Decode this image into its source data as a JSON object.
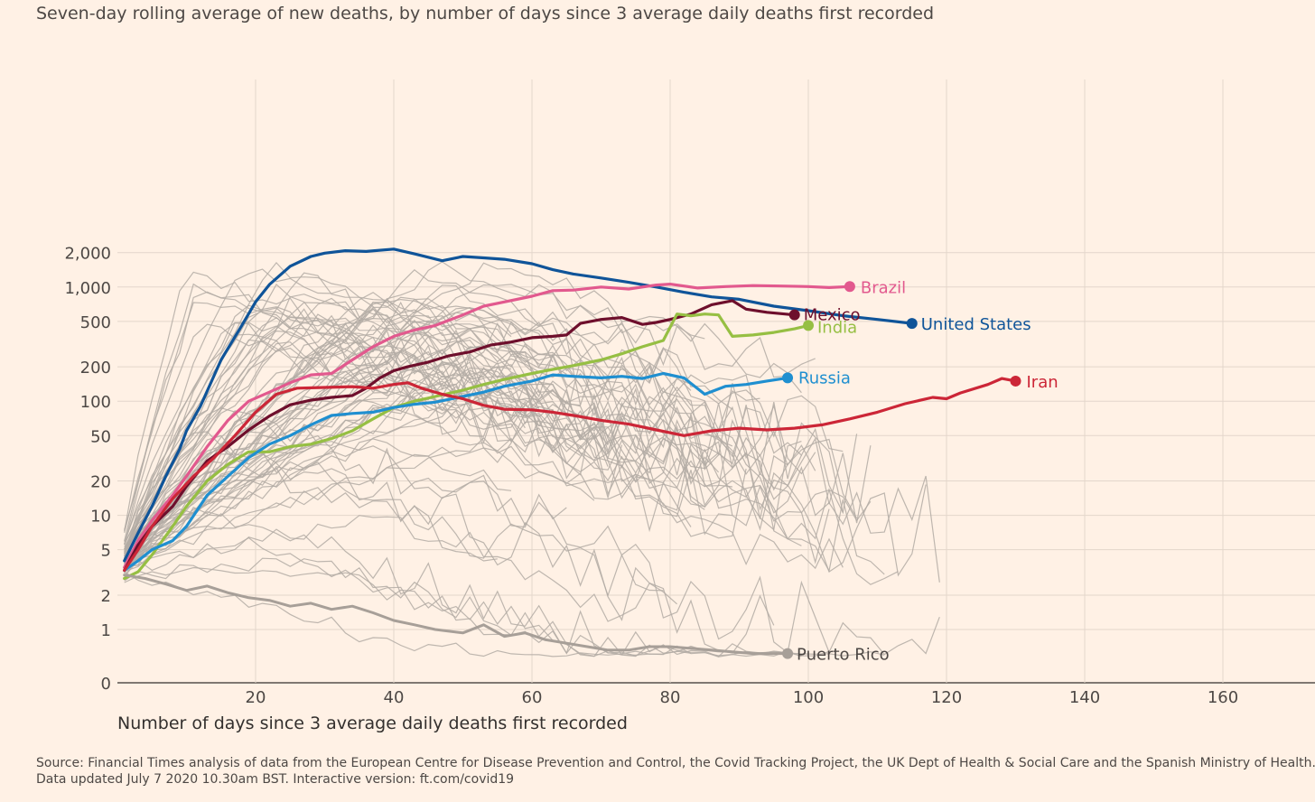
{
  "title": "Seven-day rolling average of new deaths, by number of days since 3 average daily deaths first recorded",
  "xlabel": "Number of days since 3 average daily deaths first recorded",
  "source_line1": "Source: Financial Times analysis of data from the European Centre for Disease Prevention and Control, the Covid Tracking Project, the UK Dept of Health & Social Care and the Spanish Ministry of Health.",
  "source_line2": "Data updated July 7 2020 10.30am BST. Interactive version: ft.com/covid19",
  "chart_data": {
    "type": "line",
    "xlabel": "Number of days since 3 average daily deaths first recorded",
    "ylabel": "",
    "xlim": [
      0,
      175
    ],
    "ylim": [
      0,
      3000
    ],
    "yscale": "log (0 at bottom)",
    "xticks": [
      20,
      40,
      60,
      80,
      100,
      120,
      140,
      160
    ],
    "xtick_labels": [
      "20",
      "40",
      "60",
      "80",
      "100",
      "120",
      "140",
      "160"
    ],
    "yticks": [
      0,
      1,
      2,
      5,
      10,
      20,
      50,
      100,
      200,
      500,
      1000,
      2000
    ],
    "ytick_labels": [
      "0",
      "1",
      "2",
      "5",
      "10",
      "20",
      "50",
      "100",
      "200",
      "500",
      "1,000",
      "2,000"
    ],
    "grid": true,
    "legend": "none (direct labels at line ends)",
    "colors": {
      "background": "#fff1e5",
      "grid": "#e3d6cb",
      "other": "#b3aba4",
      "United States": "#0f5499",
      "Brazil": "#e2598e",
      "Mexico": "#6e0f2c",
      "India": "#96bf43",
      "Russia": "#1f8fd0",
      "Iran": "#cc2637",
      "Puerto Rico": "#a79f98"
    },
    "series": [
      {
        "name": "United States",
        "highlight": true,
        "label_side": "right",
        "x": [
          1,
          3,
          5,
          7,
          9,
          10,
          12,
          15,
          18,
          20,
          22,
          25,
          28,
          30,
          33,
          36,
          40,
          43,
          47,
          50,
          53,
          56,
          60,
          63,
          66,
          70,
          74,
          78,
          82,
          86,
          90,
          95,
          100,
          105,
          110,
          115
        ],
        "y": [
          4,
          7,
          12,
          22,
          38,
          55,
          90,
          230,
          460,
          740,
          1050,
          1520,
          1850,
          1980,
          2080,
          2050,
          2150,
          1950,
          1700,
          1850,
          1800,
          1750,
          1600,
          1420,
          1300,
          1200,
          1100,
          1000,
          900,
          820,
          780,
          680,
          620,
          560,
          520,
          480
        ]
      },
      {
        "name": "Brazil",
        "highlight": true,
        "label_side": "right",
        "x": [
          1,
          3,
          5,
          8,
          10,
          13,
          16,
          19,
          22,
          25,
          28,
          31,
          34,
          37,
          40,
          43,
          46,
          50,
          53,
          56,
          60,
          63,
          66,
          70,
          74,
          78,
          80,
          84,
          88,
          92,
          96,
          100,
          103,
          106
        ],
        "y": [
          3.5,
          6,
          9,
          15,
          22,
          40,
          68,
          100,
          120,
          145,
          170,
          175,
          230,
          300,
          370,
          420,
          460,
          570,
          680,
          740,
          830,
          930,
          940,
          1000,
          960,
          1040,
          1060,
          980,
          1010,
          1030,
          1020,
          1010,
          990,
          1010
        ]
      },
      {
        "name": "Mexico",
        "highlight": true,
        "label_side": "right",
        "x": [
          1,
          3,
          5,
          8,
          10,
          13,
          16,
          19,
          22,
          25,
          28,
          31,
          34,
          36,
          38,
          40,
          42,
          45,
          48,
          51,
          54,
          57,
          60,
          63,
          65,
          67,
          70,
          73,
          76,
          78,
          80,
          83,
          86,
          89,
          91,
          94,
          98
        ],
        "y": [
          3.3,
          5.5,
          8,
          12,
          18,
          30,
          40,
          56,
          74,
          93,
          102,
          108,
          112,
          130,
          160,
          185,
          200,
          220,
          250,
          270,
          310,
          330,
          360,
          370,
          380,
          480,
          520,
          540,
          470,
          490,
          520,
          580,
          700,
          760,
          640,
          600,
          570
        ]
      },
      {
        "name": "India",
        "highlight": true,
        "label_side": "right",
        "x": [
          1,
          3,
          5,
          8,
          10,
          13,
          16,
          19,
          22,
          25,
          28,
          31,
          34,
          37,
          40,
          43,
          46,
          50,
          53,
          56,
          60,
          63,
          66,
          70,
          73,
          76,
          79,
          81,
          83,
          85,
          87,
          89,
          92,
          95,
          98,
          100
        ],
        "y": [
          2.8,
          3.2,
          4.5,
          8,
          12,
          20,
          28,
          36,
          36,
          40,
          42,
          47,
          55,
          70,
          88,
          100,
          110,
          125,
          140,
          155,
          175,
          190,
          205,
          230,
          260,
          300,
          340,
          580,
          560,
          580,
          570,
          370,
          380,
          400,
          430,
          460
        ]
      },
      {
        "name": "Russia",
        "highlight": true,
        "label_side": "right",
        "x": [
          1,
          3,
          5,
          8,
          10,
          13,
          16,
          19,
          22,
          25,
          28,
          31,
          34,
          37,
          40,
          43,
          46,
          50,
          53,
          56,
          60,
          63,
          66,
          70,
          73,
          76,
          79,
          82,
          85,
          88,
          91,
          94,
          97
        ],
        "y": [
          3.3,
          4,
          5,
          6,
          8,
          15,
          22,
          32,
          42,
          50,
          62,
          75,
          78,
          80,
          88,
          94,
          98,
          110,
          120,
          135,
          150,
          170,
          165,
          160,
          165,
          158,
          175,
          160,
          115,
          135,
          140,
          150,
          160
        ]
      },
      {
        "name": "Iran",
        "highlight": true,
        "label_side": "right",
        "x": [
          1,
          3,
          5,
          8,
          11,
          14,
          17,
          20,
          23,
          26,
          30,
          34,
          37,
          40,
          42,
          44,
          47,
          50,
          53,
          56,
          60,
          63,
          66,
          70,
          74,
          78,
          82,
          86,
          90,
          94,
          98,
          102,
          106,
          110,
          114,
          118,
          120,
          122,
          126,
          128,
          130
        ],
        "y": [
          3.3,
          5,
          8,
          14,
          22,
          32,
          50,
          80,
          115,
          130,
          132,
          134,
          130,
          140,
          145,
          130,
          115,
          105,
          92,
          85,
          84,
          80,
          75,
          68,
          63,
          56,
          50,
          55,
          58,
          56,
          58,
          62,
          70,
          80,
          95,
          108,
          105,
          118,
          140,
          158,
          150
        ]
      },
      {
        "name": "Puerto Rico",
        "highlight": true,
        "label_side": "right",
        "x": [
          1,
          4,
          7,
          10,
          13,
          16,
          19,
          22,
          25,
          28,
          31,
          34,
          37,
          40,
          43,
          46,
          50,
          53,
          56,
          59,
          62,
          65,
          68,
          71,
          74,
          77,
          80,
          83,
          86,
          89,
          92,
          94,
          97
        ],
        "y": [
          3,
          2.8,
          2.5,
          2.2,
          2.4,
          2.1,
          1.9,
          1.8,
          1.6,
          1.7,
          1.5,
          1.6,
          1.4,
          1.2,
          1.1,
          1.0,
          0.9,
          1.1,
          0.8,
          0.9,
          0.7,
          0.6,
          0.5,
          0.4,
          0.4,
          0.5,
          0.5,
          0.45,
          0.4,
          0.35,
          0.3,
          0.3,
          0.3
        ]
      }
    ]
  }
}
